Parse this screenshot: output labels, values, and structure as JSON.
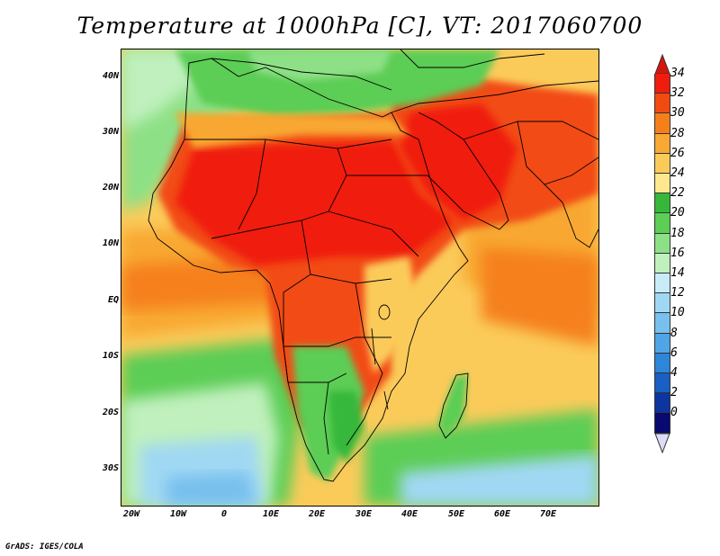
{
  "title": "Temperature at 1000hPa [C], VT: 2017060700",
  "credit": "GrADS: IGES/COLA",
  "map": {
    "lat_labels": [
      "40N",
      "30N",
      "20N",
      "10N",
      "EQ",
      "10S",
      "20S",
      "30S"
    ],
    "lon_labels": [
      "20W",
      "10W",
      "0",
      "10E",
      "20E",
      "30E",
      "40E",
      "50E",
      "60E",
      "70E"
    ]
  },
  "colorbar": {
    "labels": [
      "34",
      "32",
      "30",
      "28",
      "26",
      "24",
      "22",
      "20",
      "18",
      "16",
      "14",
      "12",
      "10",
      "8",
      "6",
      "4",
      "2",
      "0"
    ],
    "colors": [
      "#f01d0e",
      "#f24b12",
      "#f5801a",
      "#f8a833",
      "#fbcb5a",
      "#fde890",
      "#35b83a",
      "#5ccd55",
      "#8ee086",
      "#c0f0bd",
      "#c8ecf7",
      "#a0d8f3",
      "#78c0ee",
      "#4fa5e6",
      "#2d86d9",
      "#1a5fc4",
      "#0c35a0",
      "#070a70"
    ],
    "top_arrow_color": "#d4160c",
    "bottom_arrow_color": "#dcdcf6"
  }
}
